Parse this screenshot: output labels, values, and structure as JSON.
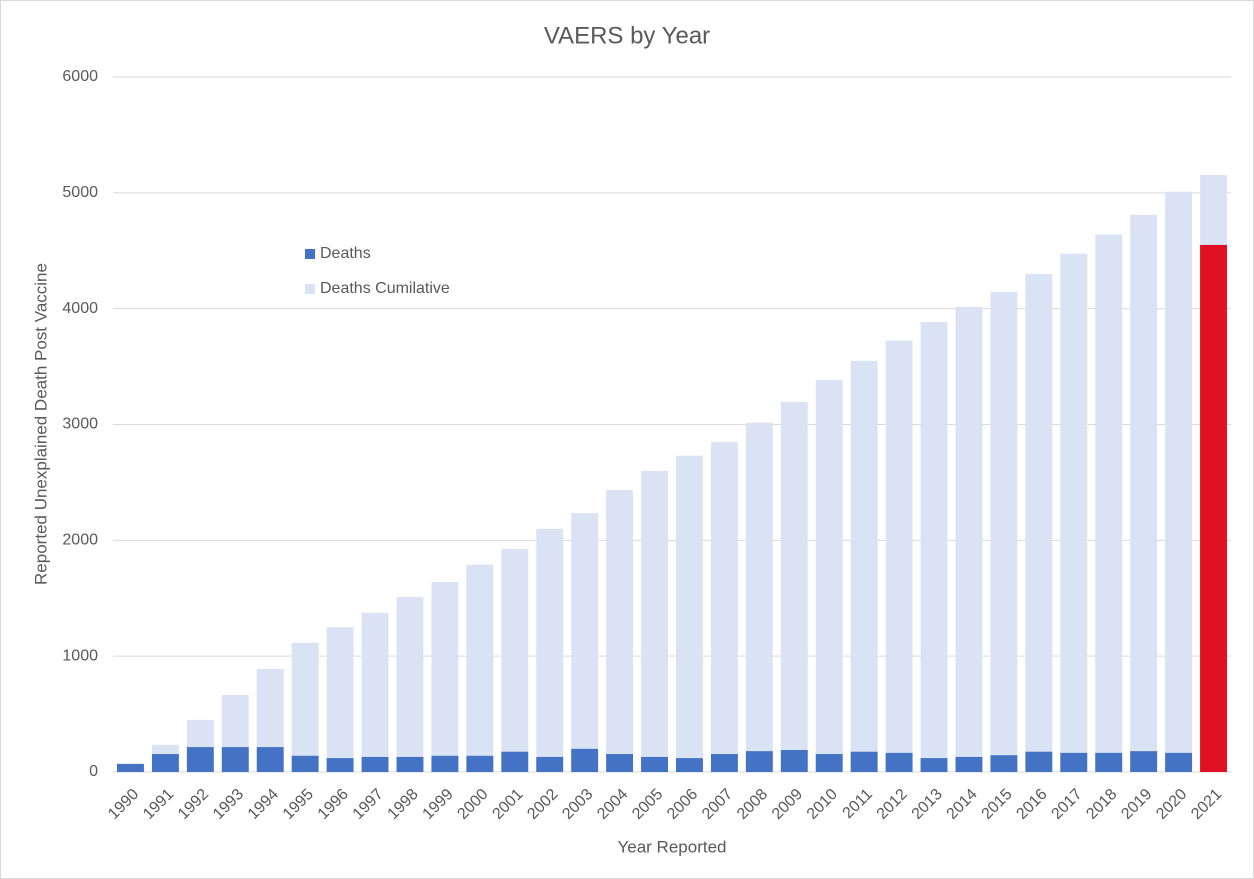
{
  "chart_data": {
    "type": "bar",
    "overlap": true,
    "title": "VAERS by Year",
    "x_label": "Year Reported",
    "y_label": "Reported Unexplained Death Post Vaccine",
    "categories": [
      "1990",
      "1991",
      "1992",
      "1993",
      "1994",
      "1995",
      "1996",
      "1997",
      "1998",
      "1999",
      "2000",
      "2001",
      "2002",
      "2003",
      "2004",
      "2005",
      "2006",
      "2007",
      "2008",
      "2009",
      "2010",
      "2011",
      "2012",
      "2013",
      "2014",
      "2015",
      "2016",
      "2017",
      "2018",
      "2019",
      "2020",
      "2021"
    ],
    "series": [
      {
        "name": "Deaths Cumilative",
        "color": "#dae3f3",
        "values": [
          70,
          235,
          450,
          665,
          890,
          1115,
          1250,
          1375,
          1510,
          1640,
          1790,
          1925,
          2100,
          2235,
          2435,
          2600,
          2730,
          2850,
          3015,
          3195,
          3385,
          3550,
          3725,
          3885,
          4015,
          4145,
          4300,
          4475,
          4640,
          4810,
          5010,
          5155
        ]
      },
      {
        "name": "Deaths",
        "color": "#4472c4",
        "point_colors": {
          "31": "#e01123"
        },
        "values": [
          70,
          155,
          215,
          215,
          215,
          140,
          120,
          130,
          130,
          140,
          140,
          175,
          130,
          200,
          155,
          130,
          120,
          155,
          180,
          190,
          155,
          175,
          165,
          120,
          130,
          145,
          175,
          165,
          165,
          180,
          165,
          4550
        ]
      }
    ],
    "legend_order": [
      1,
      0
    ],
    "legend_position": "upper left",
    "ylim": [
      0,
      6000
    ],
    "yticks": [
      0,
      1000,
      2000,
      3000,
      4000,
      5000,
      6000
    ],
    "grid": true
  }
}
